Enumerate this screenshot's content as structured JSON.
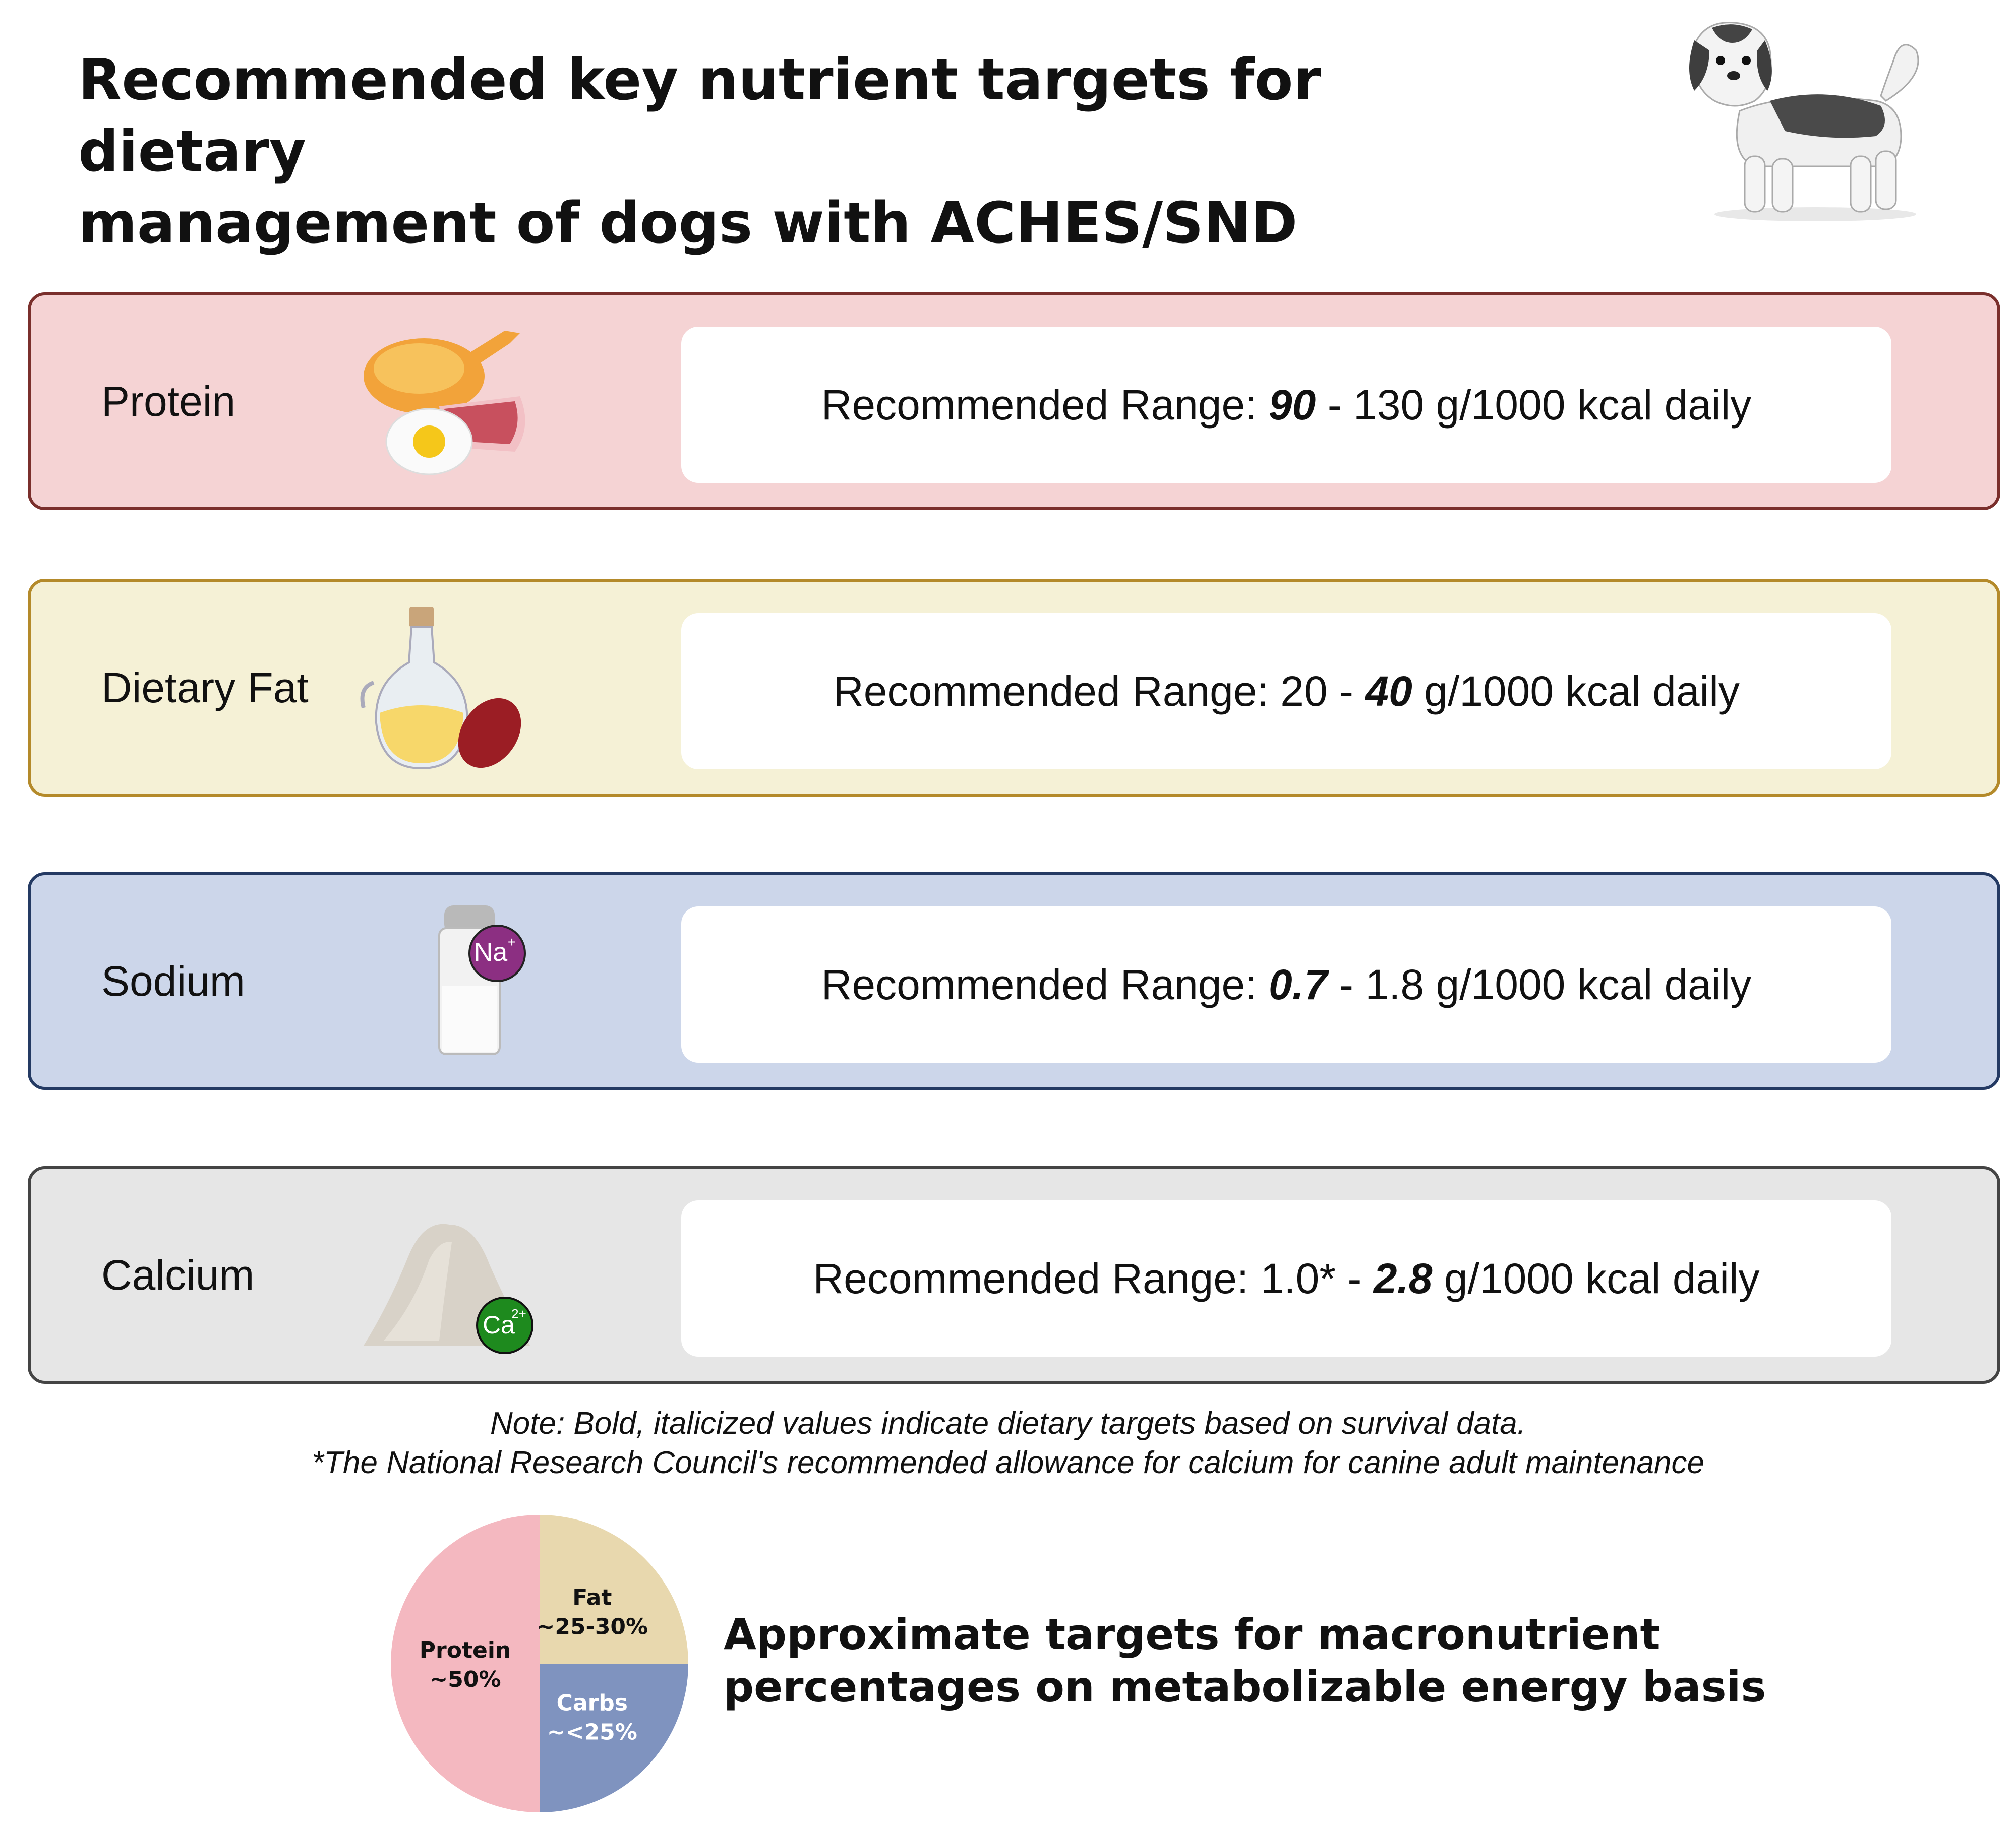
{
  "title_line1": "Recommended key nutrient targets for dietary",
  "title_line2": "management of dogs with ACHES/SND",
  "nutrients": [
    {
      "label": "Protein",
      "pre": "Recommended Range: ",
      "bold": "90",
      "mid": " - 130 g/1000 kcal daily",
      "post": "",
      "icon": "chicken-meat-egg-icon"
    },
    {
      "label": "Dietary Fat",
      "pre": "Recommended Range: 20 - ",
      "bold": "40",
      "mid": " g/1000 kcal daily",
      "post": "",
      "icon": "oil-bottle-icon"
    },
    {
      "label": "Sodium",
      "pre": "Recommended Range: ",
      "bold": "0.7",
      "mid": " - 1.8 g/1000 kcal daily",
      "post": "",
      "icon": "salt-shaker-icon",
      "badge": "Na",
      "badge_sup": "+"
    },
    {
      "label": "Calcium",
      "pre": "Recommended Range: 1.0* - ",
      "bold": "2.8",
      "mid": " g/1000 kcal daily",
      "post": "",
      "icon": "powder-pile-icon",
      "badge": "Ca",
      "badge_sup": "2+"
    }
  ],
  "note_line1": "Note: Bold, italicized values indicate dietary targets based on survival data.",
  "note_line2": "*The National Research Council's recommended allowance for calcium for canine adult maintenance",
  "pie_caption_line1": "Approximate targets for macronutrient",
  "pie_caption_line2": "percentages on metabolizable energy basis",
  "chart_data": {
    "type": "pie",
    "slices": [
      {
        "name": "Protein",
        "label": "~50%",
        "value": 50,
        "color": "#f4b8c0"
      },
      {
        "name": "Fat",
        "label": "~25-30%",
        "value": 25,
        "color": "#e8d8ae"
      },
      {
        "name": "Carbs",
        "label": "~<25%",
        "value": 25,
        "color": "#7f93bf"
      }
    ]
  },
  "colors": {
    "protein_bg": "#f5d3d4",
    "fat_bg": "#f5f1d6",
    "sodium_bg": "#ccd6ea",
    "calcium_bg": "#e6e6e6"
  }
}
